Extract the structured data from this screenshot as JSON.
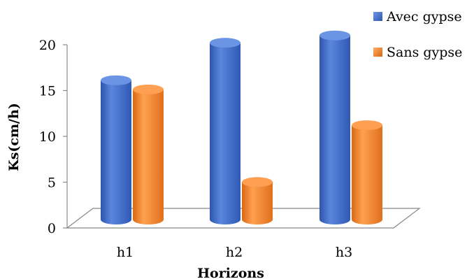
{
  "chart_data": {
    "type": "bar",
    "categories": [
      "h1",
      "h2",
      "h3"
    ],
    "series": [
      {
        "name": "Avec gypse",
        "values": [
          15.2,
          19.3,
          20.1
        ],
        "color": "#3a66c4"
      },
      {
        "name": "Sans gypse",
        "values": [
          14.2,
          4.1,
          10.3
        ],
        "color": "#f07f28"
      }
    ],
    "xlabel": "Horizons",
    "ylabel": "Ks(cm/h)",
    "ylim": [
      0,
      20
    ],
    "yticks": [
      0,
      5,
      10,
      15,
      20
    ],
    "legend_position": "top-right",
    "grid": false,
    "style": "3d-cylinder"
  }
}
